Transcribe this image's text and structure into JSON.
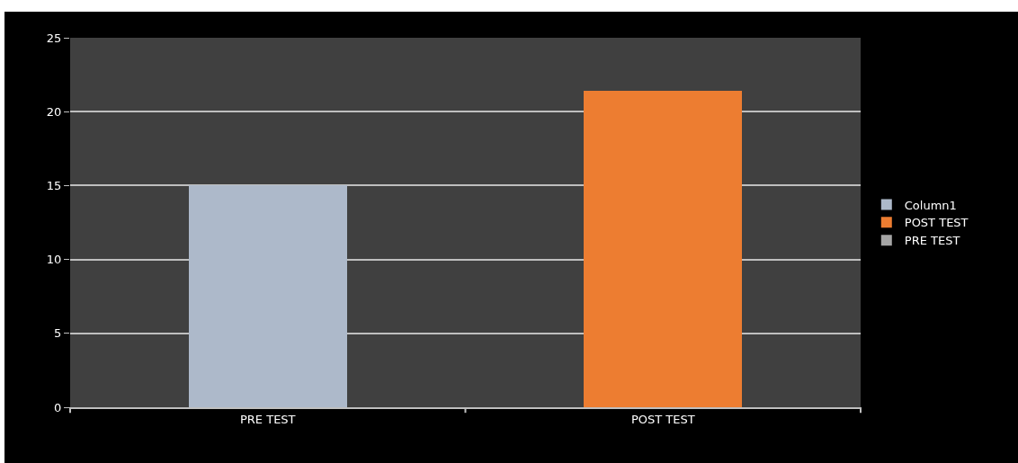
{
  "chart_data": {
    "type": "bar",
    "categories": [
      "PRE TEST",
      "POST TEST"
    ],
    "stacked": true,
    "series": [
      {
        "name": "Column1",
        "color": "#adb9ca",
        "values": [
          15,
          null
        ]
      },
      {
        "name": "POST TEST",
        "color": "#ed7d31",
        "values": [
          null,
          21.4
        ]
      },
      {
        "name": "PRE TEST",
        "color": "#a5a5a5",
        "values": [
          null,
          null
        ]
      }
    ],
    "ylim": [
      0,
      25
    ],
    "yticks": [
      0,
      5,
      10,
      15,
      20,
      25
    ],
    "grid": "y",
    "legend": "right"
  }
}
